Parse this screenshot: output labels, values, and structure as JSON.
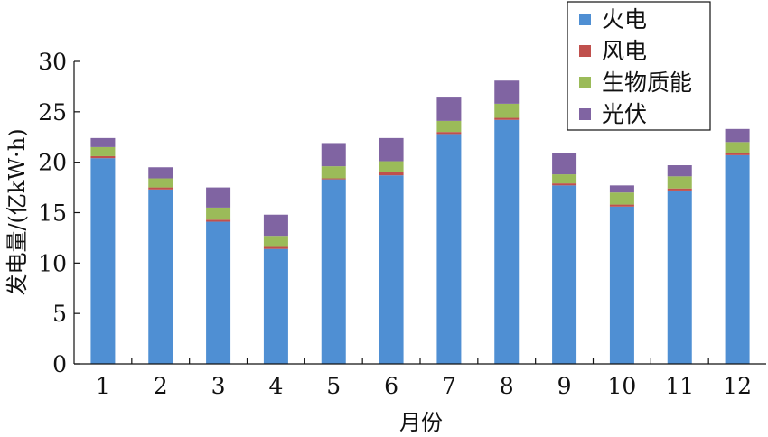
{
  "chart_data": {
    "type": "bar",
    "stacked": true,
    "title": "",
    "xlabel": "月份",
    "ylabel": "发电量/(亿kW·h)",
    "ylim": [
      0,
      30
    ],
    "yticks": [
      0,
      5,
      10,
      15,
      20,
      25,
      30
    ],
    "grid": false,
    "legend_position": "top-right",
    "categories": [
      "1",
      "2",
      "3",
      "4",
      "5",
      "6",
      "7",
      "8",
      "9",
      "10",
      "11",
      "12"
    ],
    "series": [
      {
        "name": "火电",
        "color": "#4f8fd3",
        "values": [
          20.4,
          17.3,
          14.1,
          11.4,
          18.3,
          18.7,
          22.8,
          24.2,
          17.7,
          15.6,
          17.2,
          20.7
        ]
      },
      {
        "name": "风电",
        "color": "#c0504d",
        "values": [
          0.2,
          0.2,
          0.2,
          0.2,
          0.1,
          0.3,
          0.2,
          0.2,
          0.2,
          0.2,
          0.2,
          0.2
        ]
      },
      {
        "name": "生物质能",
        "color": "#9bbb59",
        "values": [
          0.9,
          0.9,
          1.2,
          1.1,
          1.2,
          1.1,
          1.1,
          1.4,
          0.9,
          1.2,
          1.2,
          1.1
        ]
      },
      {
        "name": "光伏",
        "color": "#8064a2",
        "values": [
          0.9,
          1.1,
          2.0,
          2.1,
          2.3,
          2.3,
          2.4,
          2.3,
          2.1,
          0.7,
          1.1,
          1.3
        ]
      }
    ]
  }
}
